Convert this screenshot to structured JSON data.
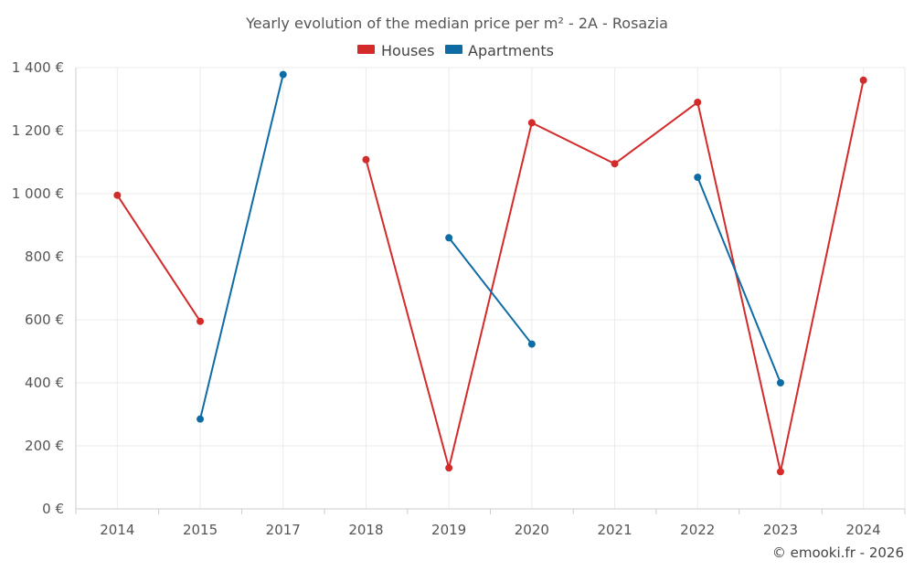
{
  "chart_data": {
    "type": "line",
    "title": "Yearly evolution of the median price per m² - 2A - Rosazia",
    "categories": [
      "2014",
      "2015",
      "2017",
      "2018",
      "2019",
      "2020",
      "2021",
      "2022",
      "2023",
      "2024"
    ],
    "y_ticks": [
      "0 €",
      "200 €",
      "400 €",
      "600 €",
      "800 €",
      "1 000 €",
      "1 200 €",
      "1 400 €"
    ],
    "ylim": [
      0,
      1400
    ],
    "grid": true,
    "legend_position": "top-center",
    "series": [
      {
        "name": "Houses",
        "color": "#d32a2a",
        "values": [
          995,
          595,
          null,
          1108,
          130,
          1225,
          1095,
          1290,
          118,
          1360
        ]
      },
      {
        "name": "Apartments",
        "color": "#0f6ba3",
        "values": [
          null,
          285,
          1378,
          null,
          860,
          523,
          null,
          1052,
          400,
          null
        ]
      }
    ]
  },
  "credit": "© emooki.fr - 2026"
}
